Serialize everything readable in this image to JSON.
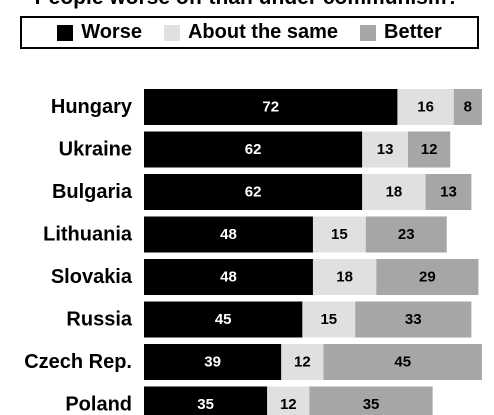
{
  "chart_data": {
    "type": "bar",
    "orientation": "horizontal",
    "stacked": true,
    "title": "People worse off than under communism?",
    "categories": [
      "Hungary",
      "Ukraine",
      "Bulgaria",
      "Lithuania",
      "Slovakia",
      "Russia",
      "Czech Rep.",
      "Poland"
    ],
    "series": [
      {
        "name": "Worse",
        "color": "#000000",
        "label_color": "#ffffff",
        "values": [
          72,
          62,
          62,
          48,
          48,
          45,
          39,
          35
        ]
      },
      {
        "name": "About the same",
        "color": "#e0e0e0",
        "label_color": "#000000",
        "values": [
          16,
          13,
          18,
          15,
          18,
          15,
          12,
          12
        ]
      },
      {
        "name": "Better",
        "color": "#a6a6a6",
        "label_color": "#000000",
        "values": [
          8,
          12,
          13,
          23,
          29,
          33,
          45,
          35
        ]
      }
    ],
    "legend_position": "top",
    "xlim": [
      0,
      100
    ],
    "grid": false
  }
}
